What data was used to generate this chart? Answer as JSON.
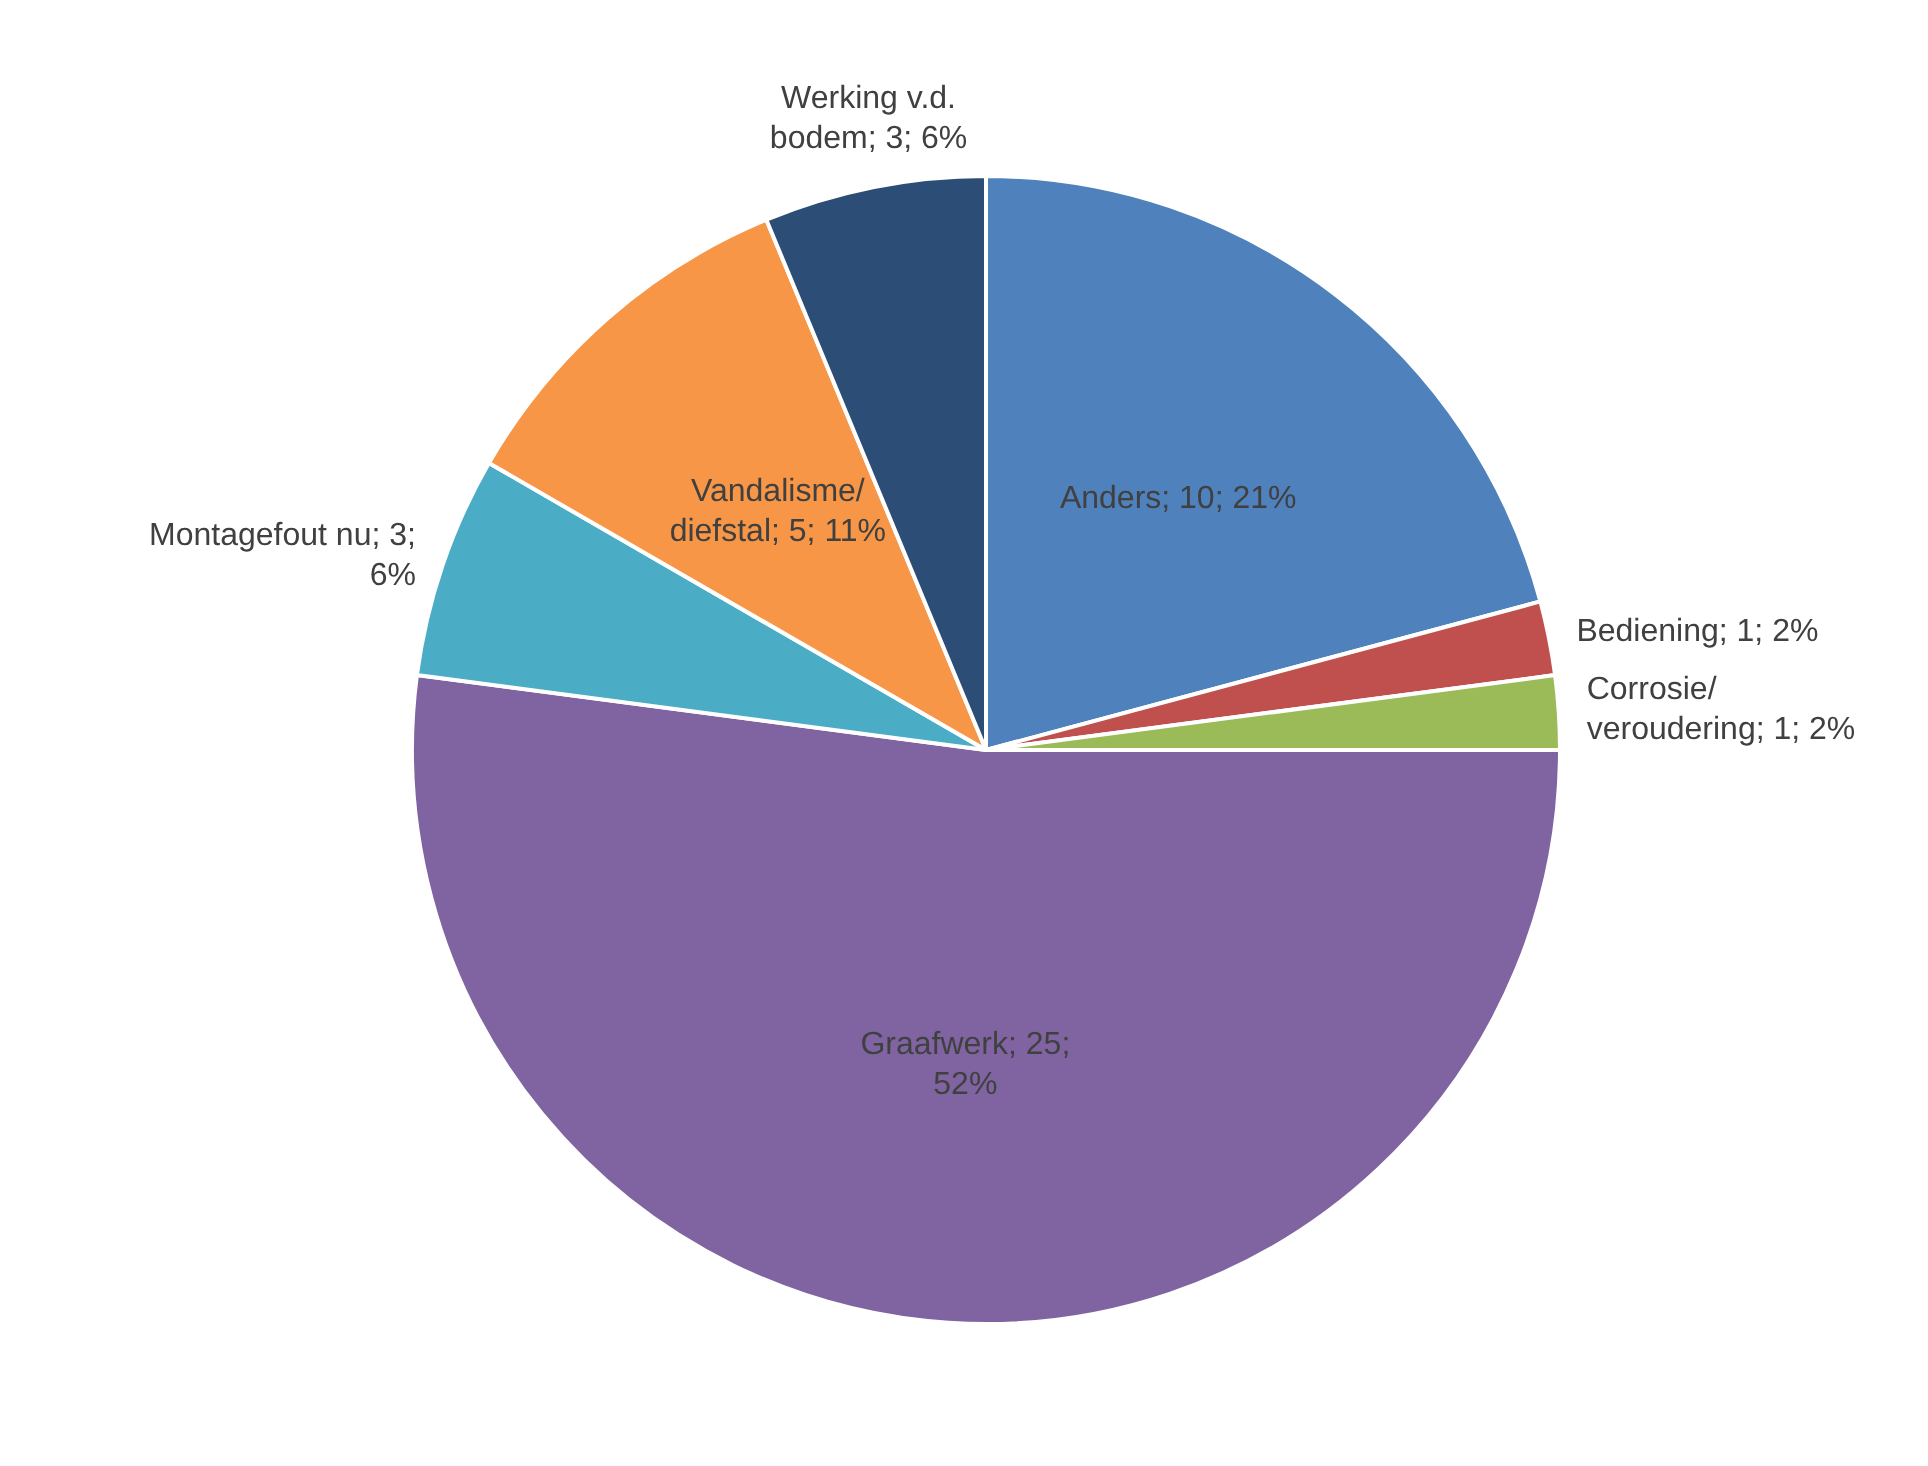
{
  "chart_data": {
    "type": "pie",
    "categories": [
      "Anders",
      "Bediening",
      "Corrosie/ veroudering",
      "Graafwerk",
      "Montagefout nu",
      "Vandalisme/ diefstal",
      "Werking v.d. bodem"
    ],
    "values": [
      10,
      1,
      1,
      25,
      3,
      5,
      3
    ],
    "colors": [
      "#4f81bd",
      "#c0504d",
      "#9bbb59",
      "#8064a2",
      "#4bacc6",
      "#f79646",
      "#2c4d75"
    ],
    "value_labels": [
      "10; 21%",
      "1; 2%",
      "1; 2%",
      "25; 52%",
      "3; 6%",
      "5; 11%",
      "3; 6%"
    ],
    "legend": false
  }
}
